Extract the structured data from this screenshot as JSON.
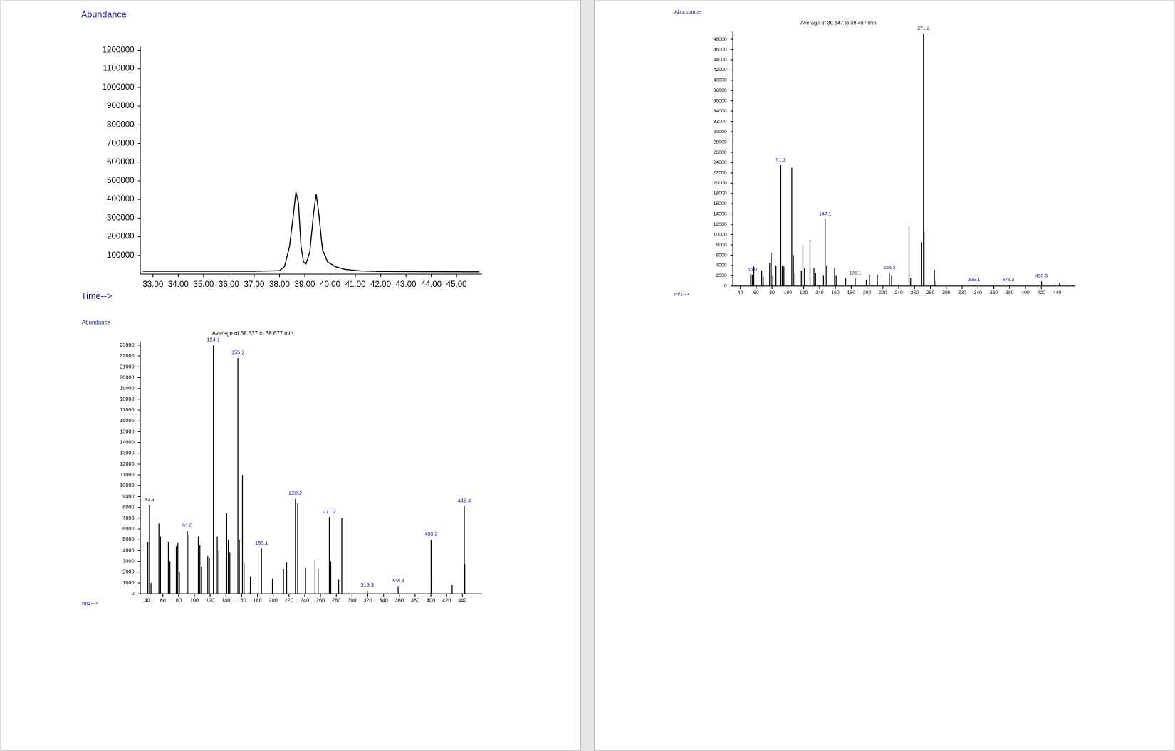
{
  "chart_data": [
    {
      "type": "line",
      "y_label": "Abundance",
      "x_label": "Time-->",
      "color": "#000000",
      "x": [
        32.6,
        37.0,
        38.0,
        38.2,
        38.4,
        38.55,
        38.65,
        38.75,
        38.85,
        38.95,
        39.05,
        39.2,
        39.35,
        39.45,
        39.55,
        39.7,
        39.9,
        40.2,
        40.6,
        41.2,
        42.0,
        45.9
      ],
      "values": [
        15000,
        15000,
        18000,
        40000,
        150000,
        320000,
        440000,
        380000,
        150000,
        65000,
        55000,
        120000,
        330000,
        430000,
        330000,
        130000,
        65000,
        40000,
        25000,
        17000,
        14000,
        12000
      ],
      "xlim": [
        32.5,
        46.0
      ],
      "ylim": [
        0,
        1220000
      ],
      "xticks": [
        {
          "value": 33,
          "label": "33.00"
        },
        {
          "value": 34,
          "label": "34.00"
        },
        {
          "value": 35,
          "label": "35.00"
        },
        {
          "value": 36,
          "label": "36.00"
        },
        {
          "value": 37,
          "label": "37.00"
        },
        {
          "value": 38,
          "label": "38.00"
        },
        {
          "value": 39,
          "label": "39.00"
        },
        {
          "value": 40,
          "label": "40.00"
        },
        {
          "value": 41,
          "label": "41.00"
        },
        {
          "value": 42,
          "label": "42.00"
        },
        {
          "value": 43,
          "label": "43.00"
        },
        {
          "value": 44,
          "label": "44.00"
        },
        {
          "value": 45,
          "label": "45.00"
        }
      ],
      "yticks": [
        100000,
        200000,
        300000,
        400000,
        500000,
        600000,
        700000,
        800000,
        900000,
        1000000,
        1100000,
        1200000
      ]
    },
    {
      "type": "bar",
      "title": "Average of 39.347 to 39.487 min.",
      "y_label": "Abundance",
      "x_label": "m/z-->",
      "color": "#000000",
      "x": [
        53,
        55,
        57,
        67,
        69,
        77,
        79,
        81,
        85,
        91.1,
        93,
        95,
        105,
        107,
        109,
        117,
        119,
        121,
        128,
        133,
        135,
        145,
        147.1,
        149,
        159,
        161,
        173,
        185.1,
        199,
        203,
        213,
        228.2,
        231,
        253,
        255,
        269,
        271.2,
        272,
        285,
        287,
        335.1,
        378.3,
        420.3,
        443
      ],
      "values": [
        2300,
        2200,
        3800,
        3000,
        1800,
        4500,
        6500,
        2000,
        4000,
        23500,
        4000,
        3800,
        23000,
        6000,
        2500,
        3000,
        8000,
        3500,
        9000,
        3500,
        2500,
        2000,
        13000,
        4000,
        3500,
        2000,
        1500,
        1500,
        1200,
        2200,
        2200,
        2500,
        2000,
        11800,
        1500,
        8500,
        49000,
        10500,
        3200,
        1000,
        200,
        200,
        900,
        600
      ],
      "peak_labels": [
        {
          "value": 55,
          "label": "55.0"
        },
        91.1,
        147.1,
        185.1,
        228.2,
        271.2,
        335.1,
        378.3,
        420.3
      ],
      "xlim": [
        30.5,
        462.7
      ],
      "ylim": [
        0,
        49500
      ],
      "xticks": [
        40,
        60,
        80,
        100,
        120,
        140,
        160,
        180,
        200,
        220,
        240,
        260,
        280,
        300,
        320,
        340,
        360,
        380,
        400,
        420,
        440
      ],
      "yticks": [
        0,
        2000,
        4000,
        6000,
        8000,
        10000,
        12000,
        14000,
        16000,
        18000,
        20000,
        22000,
        24000,
        26000,
        28000,
        30000,
        32000,
        34000,
        36000,
        38000,
        40000,
        42000,
        44000,
        46000,
        48000
      ]
    },
    {
      "type": "bar",
      "title": "Average of 38.537  to 38.677  min.",
      "y_label": "Abundance",
      "x_label": "m/z-->",
      "color": "#000000",
      "x": [
        41,
        43.1,
        45,
        55,
        57,
        67,
        69,
        77,
        79,
        81,
        91,
        93,
        105,
        107,
        109,
        117,
        119,
        124.1,
        129,
        131,
        141,
        143,
        145,
        155.2,
        157,
        161,
        163,
        171,
        185.1,
        199,
        213,
        217,
        228.2,
        231,
        241,
        253,
        257,
        271.2,
        273,
        283,
        287,
        319.3,
        358.4,
        400.3,
        401,
        427,
        442.4,
        443
      ],
      "values": [
        4800,
        8200,
        1000,
        6500,
        5300,
        4800,
        3000,
        4400,
        4700,
        2000,
        5800,
        5500,
        5300,
        4500,
        2500,
        3500,
        3300,
        23000,
        5300,
        4000,
        7500,
        5000,
        3800,
        21800,
        5000,
        11000,
        2800,
        1600,
        4200,
        1400,
        2300,
        2900,
        8800,
        8400,
        2400,
        3100,
        2300,
        7100,
        3000,
        1300,
        7000,
        300,
        700,
        5000,
        1500,
        800,
        8100,
        2700
      ],
      "peak_labels": [
        43.1,
        {
          "value": 91,
          "label": "91.0"
        },
        124.1,
        155.2,
        185.1,
        228.2,
        271.2,
        319.3,
        358.4,
        400.3,
        442.4
      ],
      "xlim": [
        31.4,
        464.7
      ],
      "ylim": [
        0,
        23350
      ],
      "xticks": [
        40,
        60,
        80,
        100,
        120,
        140,
        160,
        180,
        200,
        220,
        240,
        260,
        280,
        300,
        320,
        340,
        360,
        380,
        400,
        420,
        440
      ],
      "yticks": [
        0,
        1000,
        2000,
        3000,
        4000,
        5000,
        6000,
        7000,
        8000,
        9000,
        10000,
        11000,
        12000,
        13000,
        14000,
        15000,
        16000,
        17000,
        18000,
        19000,
        20000,
        21000,
        22000,
        23000
      ]
    }
  ]
}
